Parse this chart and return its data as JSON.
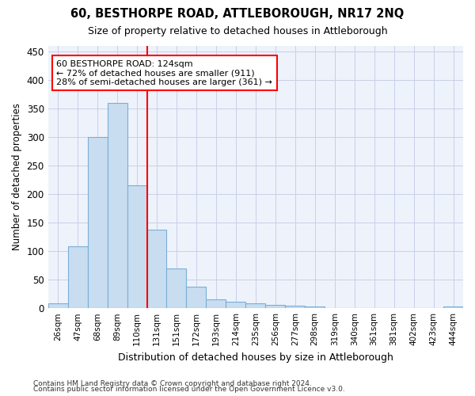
{
  "title1": "60, BESTHORPE ROAD, ATTLEBOROUGH, NR17 2NQ",
  "title2": "Size of property relative to detached houses in Attleborough",
  "xlabel": "Distribution of detached houses by size in Attleborough",
  "ylabel": "Number of detached properties",
  "categories": [
    "26sqm",
    "47sqm",
    "68sqm",
    "89sqm",
    "110sqm",
    "131sqm",
    "151sqm",
    "172sqm",
    "193sqm",
    "214sqm",
    "235sqm",
    "256sqm",
    "277sqm",
    "298sqm",
    "319sqm",
    "340sqm",
    "361sqm",
    "381sqm",
    "402sqm",
    "423sqm",
    "444sqm"
  ],
  "values": [
    8,
    108,
    300,
    360,
    215,
    138,
    70,
    38,
    15,
    11,
    8,
    6,
    5,
    3,
    0,
    0,
    0,
    0,
    0,
    0,
    3
  ],
  "bar_color": "#c8ddf0",
  "bar_edge_color": "#7aaed6",
  "vline_x": 4.5,
  "vline_color": "red",
  "annotation_line1": "60 BESTHORPE ROAD: 124sqm",
  "annotation_line2": "← 72% of detached houses are smaller (911)",
  "annotation_line3": "28% of semi-detached houses are larger (361) →",
  "annotation_box_color": "white",
  "annotation_box_edge": "red",
  "ylim": [
    0,
    460
  ],
  "yticks": [
    0,
    50,
    100,
    150,
    200,
    250,
    300,
    350,
    400,
    450
  ],
  "background_color": "#eef2fb",
  "grid_color": "#c8cfe8",
  "footer1": "Contains HM Land Registry data © Crown copyright and database right 2024.",
  "footer2": "Contains public sector information licensed under the Open Government Licence v3.0."
}
